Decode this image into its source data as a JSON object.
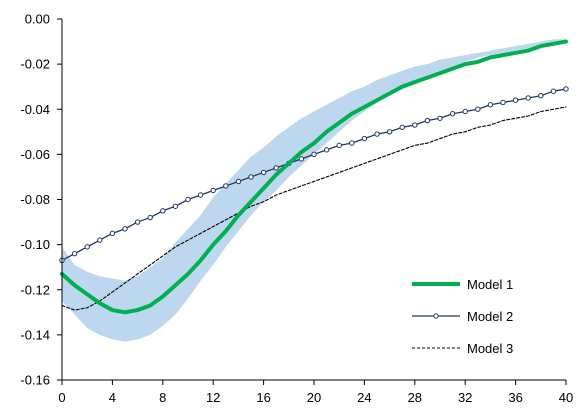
{
  "chart_data": {
    "type": "line",
    "title": "",
    "xlabel": "",
    "ylabel": "",
    "xlim": [
      0,
      40
    ],
    "ylim": [
      -0.16,
      0.0
    ],
    "grid": false,
    "legend_position": "bottom-right",
    "x_ticks": [
      0,
      4,
      8,
      12,
      16,
      20,
      24,
      28,
      32,
      36,
      40
    ],
    "y_ticks": [
      0.0,
      -0.02,
      -0.04,
      -0.06,
      -0.08,
      -0.1,
      -0.12,
      -0.14,
      -0.16
    ],
    "y_tick_labels": [
      "0.00",
      "-0.02",
      "-0.04",
      "-0.06",
      "-0.08",
      "-0.10",
      "-0.12",
      "-0.14",
      "-0.16"
    ],
    "x": [
      0,
      1,
      2,
      3,
      4,
      5,
      6,
      7,
      8,
      9,
      10,
      11,
      12,
      13,
      14,
      15,
      16,
      17,
      18,
      19,
      20,
      21,
      22,
      23,
      24,
      25,
      26,
      27,
      28,
      29,
      30,
      31,
      32,
      33,
      34,
      35,
      36,
      37,
      38,
      39,
      40
    ],
    "band": {
      "color": "#bdd7ee",
      "lower": [
        -0.125,
        -0.131,
        -0.137,
        -0.14,
        -0.142,
        -0.143,
        -0.142,
        -0.14,
        -0.136,
        -0.131,
        -0.124,
        -0.116,
        -0.109,
        -0.101,
        -0.094,
        -0.087,
        -0.081,
        -0.076,
        -0.07,
        -0.065,
        -0.06,
        -0.055,
        -0.05,
        -0.045,
        -0.041,
        -0.037,
        -0.033,
        -0.03,
        -0.028,
        -0.025,
        -0.023,
        -0.021,
        -0.019,
        -0.017,
        -0.016,
        -0.015,
        -0.014,
        -0.013,
        -0.012,
        -0.011,
        -0.011
      ],
      "upper": [
        -0.101,
        -0.109,
        -0.112,
        -0.114,
        -0.115,
        -0.116,
        -0.114,
        -0.11,
        -0.106,
        -0.099,
        -0.093,
        -0.087,
        -0.079,
        -0.073,
        -0.067,
        -0.061,
        -0.057,
        -0.052,
        -0.048,
        -0.044,
        -0.041,
        -0.038,
        -0.035,
        -0.032,
        -0.03,
        -0.027,
        -0.025,
        -0.023,
        -0.021,
        -0.02,
        -0.018,
        -0.017,
        -0.016,
        -0.015,
        -0.014,
        -0.013,
        -0.012,
        -0.011,
        -0.01,
        -0.009,
        -0.009
      ]
    },
    "series": [
      {
        "name": "Model 1",
        "color": "#00b050",
        "style": "solid-thick",
        "values": [
          -0.113,
          -0.118,
          -0.122,
          -0.126,
          -0.129,
          -0.13,
          -0.129,
          -0.127,
          -0.123,
          -0.118,
          -0.113,
          -0.107,
          -0.1,
          -0.094,
          -0.087,
          -0.081,
          -0.075,
          -0.069,
          -0.064,
          -0.059,
          -0.055,
          -0.05,
          -0.046,
          -0.042,
          -0.039,
          -0.036,
          -0.033,
          -0.03,
          -0.028,
          -0.026,
          -0.024,
          -0.022,
          -0.02,
          -0.019,
          -0.017,
          -0.016,
          -0.015,
          -0.014,
          -0.012,
          -0.011,
          -0.01
        ]
      },
      {
        "name": "Model 2",
        "color": "#1f3864",
        "style": "solid-markers",
        "values": [
          -0.107,
          -0.104,
          -0.101,
          -0.098,
          -0.095,
          -0.093,
          -0.09,
          -0.088,
          -0.085,
          -0.083,
          -0.08,
          -0.078,
          -0.076,
          -0.074,
          -0.072,
          -0.07,
          -0.068,
          -0.066,
          -0.064,
          -0.062,
          -0.06,
          -0.058,
          -0.056,
          -0.055,
          -0.053,
          -0.051,
          -0.05,
          -0.048,
          -0.047,
          -0.045,
          -0.044,
          -0.042,
          -0.041,
          -0.04,
          -0.038,
          -0.037,
          -0.036,
          -0.035,
          -0.034,
          -0.032,
          -0.031
        ]
      },
      {
        "name": "Model 3",
        "color": "#000000",
        "style": "dashed",
        "values": [
          -0.127,
          -0.129,
          -0.128,
          -0.125,
          -0.121,
          -0.117,
          -0.113,
          -0.109,
          -0.105,
          -0.101,
          -0.098,
          -0.095,
          -0.092,
          -0.089,
          -0.086,
          -0.083,
          -0.081,
          -0.078,
          -0.076,
          -0.074,
          -0.072,
          -0.07,
          -0.068,
          -0.066,
          -0.064,
          -0.062,
          -0.06,
          -0.058,
          -0.056,
          -0.055,
          -0.053,
          -0.051,
          -0.05,
          -0.048,
          -0.047,
          -0.045,
          -0.044,
          -0.043,
          -0.041,
          -0.04,
          -0.039
        ]
      }
    ]
  }
}
